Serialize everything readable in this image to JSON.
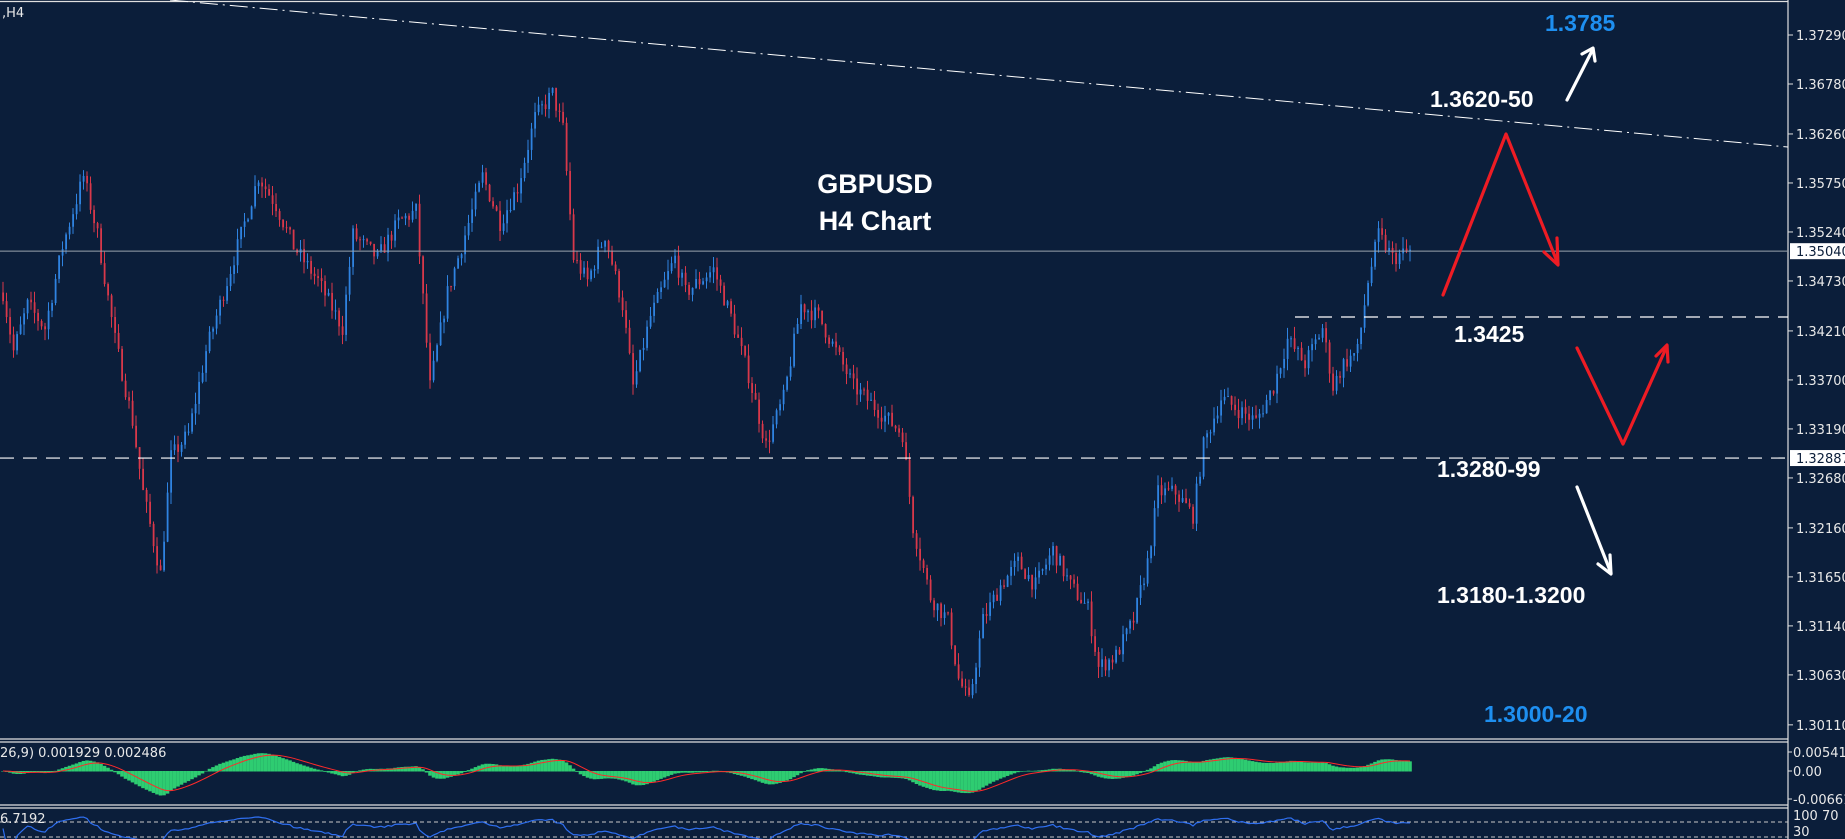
{
  "chart_label": ",H4",
  "colors": {
    "background": "#0b1e3a",
    "bull": "#2f83e0",
    "bear": "#d8384a",
    "macd_hist": "#2ecc71",
    "signal": "#ff2a2a",
    "rsi": "#2f6ff0",
    "annotation_blue": "#1e8ff0",
    "zigzag": "#ee1c24"
  },
  "chart_data": [
    {
      "type": "candlestick",
      "title": "GBPUSD",
      "subtitle": "H4 Chart",
      "ylim": [
        1.299,
        1.3765
      ],
      "y_ticks": [
        "1.37290",
        "1.36780",
        "1.36260",
        "1.35750",
        "1.35240",
        "1.34730",
        "1.34210",
        "1.33700",
        "1.33190",
        "1.32680",
        "1.32160",
        "1.31650",
        "1.31140",
        "1.30630",
        "1.30110"
      ],
      "current_price": "1.35040",
      "marked_level": "1.32887",
      "approx_close_path": [
        [
          0,
          1.3461
        ],
        [
          3,
          1.34
        ],
        [
          7,
          1.3448
        ],
        [
          12,
          1.3424
        ],
        [
          17,
          1.3509
        ],
        [
          23,
          1.3582
        ],
        [
          27,
          1.3521
        ],
        [
          32,
          1.3412
        ],
        [
          37,
          1.3327
        ],
        [
          40,
          1.3253
        ],
        [
          45,
          1.3168
        ],
        [
          48,
          1.329
        ],
        [
          53,
          1.3314
        ],
        [
          58,
          1.34
        ],
        [
          63,
          1.3461
        ],
        [
          68,
          1.3521
        ],
        [
          73,
          1.3582
        ],
        [
          78,
          1.3552
        ],
        [
          83,
          1.3509
        ],
        [
          90,
          1.3473
        ],
        [
          97,
          1.3424
        ],
        [
          100,
          1.3521
        ],
        [
          107,
          1.3497
        ],
        [
          113,
          1.3534
        ],
        [
          118,
          1.3546
        ],
        [
          122,
          1.3363
        ],
        [
          127,
          1.3461
        ],
        [
          132,
          1.3521
        ],
        [
          137,
          1.3582
        ],
        [
          142,
          1.3534
        ],
        [
          147,
          1.357
        ],
        [
          152,
          1.3643
        ],
        [
          157,
          1.3668
        ],
        [
          160,
          1.3631
        ],
        [
          163,
          1.3497
        ],
        [
          167,
          1.3473
        ],
        [
          172,
          1.3521
        ],
        [
          177,
          1.3448
        ],
        [
          180,
          1.3363
        ],
        [
          185,
          1.3436
        ],
        [
          192,
          1.3497
        ],
        [
          195,
          1.3461
        ],
        [
          203,
          1.3485
        ],
        [
          208,
          1.3436
        ],
        [
          213,
          1.3375
        ],
        [
          218,
          1.3302
        ],
        [
          223,
          1.3351
        ],
        [
          228,
          1.3448
        ],
        [
          233,
          1.3436
        ],
        [
          238,
          1.34
        ],
        [
          243,
          1.3363
        ],
        [
          250,
          1.3339
        ],
        [
          257,
          1.3314
        ],
        [
          260,
          1.3217
        ],
        [
          265,
          1.3144
        ],
        [
          270,
          1.312
        ],
        [
          273,
          1.3059
        ],
        [
          276,
          1.3034
        ],
        [
          280,
          1.312
        ],
        [
          285,
          1.3156
        ],
        [
          290,
          1.318
        ],
        [
          295,
          1.3156
        ],
        [
          300,
          1.3193
        ],
        [
          305,
          1.3156
        ],
        [
          310,
          1.3132
        ],
        [
          313,
          1.3071
        ],
        [
          318,
          1.3083
        ],
        [
          323,
          1.312
        ],
        [
          327,
          1.318
        ],
        [
          330,
          1.3253
        ],
        [
          335,
          1.3253
        ],
        [
          340,
          1.3229
        ],
        [
          343,
          1.3302
        ],
        [
          348,
          1.3351
        ],
        [
          353,
          1.3339
        ],
        [
          358,
          1.3327
        ],
        [
          363,
          1.3363
        ],
        [
          367,
          1.3412
        ],
        [
          372,
          1.3387
        ],
        [
          377,
          1.3424
        ],
        [
          380,
          1.3363
        ],
        [
          383,
          1.3387
        ],
        [
          387,
          1.34
        ],
        [
          390,
          1.3473
        ],
        [
          393,
          1.3521
        ],
        [
          397,
          1.3497
        ],
        [
          402,
          1.3504
        ]
      ],
      "lines": [
        {
          "kind": "horizontal",
          "value": 1.3504,
          "style": "solid"
        },
        {
          "kind": "horizontal",
          "value": 1.32887,
          "style": "dashed"
        },
        {
          "kind": "horizontal",
          "value": 1.3425,
          "style": "dashed"
        },
        {
          "kind": "trendline",
          "style": "dashed"
        }
      ],
      "annotations": [
        {
          "text": "1.3785",
          "color": "blue"
        },
        {
          "text": "1.3620-50",
          "color": "white"
        },
        {
          "text": "1.3425",
          "color": "white"
        },
        {
          "text": "1.3280-99",
          "color": "white"
        },
        {
          "text": "1.3180-1.3200",
          "color": "white"
        },
        {
          "text": "1.3000-20",
          "color": "blue"
        }
      ]
    },
    {
      "type": "histogram",
      "name_visible": "26,9) 0.001929 0.002486",
      "y_ticks": [
        "0.005415",
        "0.00",
        "-0.006611"
      ]
    },
    {
      "type": "line",
      "name_visible": "6.7192",
      "y_ticks": [
        "100",
        "70",
        "30"
      ]
    }
  ]
}
